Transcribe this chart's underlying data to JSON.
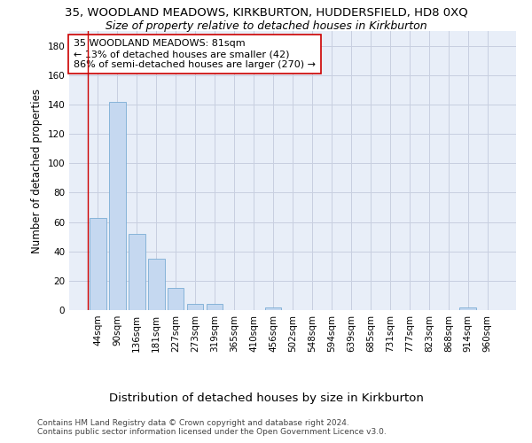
{
  "title": "35, WOODLAND MEADOWS, KIRKBURTON, HUDDERSFIELD, HD8 0XQ",
  "subtitle": "Size of property relative to detached houses in Kirkburton",
  "xlabel": "Distribution of detached houses by size in Kirkburton",
  "ylabel": "Number of detached properties",
  "bar_color": "#c5d8f0",
  "bar_edge_color": "#7aadd4",
  "grid_color": "#c8cfe0",
  "bg_color": "#e8eef8",
  "annotation_line1": "35 WOODLAND MEADOWS: 81sqm",
  "annotation_line2": "← 13% of detached houses are smaller (42)",
  "annotation_line3": "86% of semi-detached houses are larger (270) →",
  "annotation_line_color": "#cc0000",
  "annotation_box_edge_color": "#cc0000",
  "categories": [
    "44sqm",
    "90sqm",
    "136sqm",
    "181sqm",
    "227sqm",
    "273sqm",
    "319sqm",
    "365sqm",
    "410sqm",
    "456sqm",
    "502sqm",
    "548sqm",
    "594sqm",
    "639sqm",
    "685sqm",
    "731sqm",
    "777sqm",
    "823sqm",
    "868sqm",
    "914sqm",
    "960sqm"
  ],
  "bar_heights": [
    63,
    142,
    52,
    35,
    15,
    4,
    4,
    0,
    0,
    2,
    0,
    0,
    0,
    0,
    0,
    0,
    0,
    0,
    0,
    2,
    0
  ],
  "ylim": [
    0,
    190
  ],
  "yticks": [
    0,
    20,
    40,
    60,
    80,
    100,
    120,
    140,
    160,
    180
  ],
  "footer_line1": "Contains HM Land Registry data © Crown copyright and database right 2024.",
  "footer_line2": "Contains public sector information licensed under the Open Government Licence v3.0.",
  "title_fontsize": 9.5,
  "subtitle_fontsize": 9,
  "xlabel_fontsize": 9.5,
  "ylabel_fontsize": 8.5,
  "tick_fontsize": 7.5,
  "footer_fontsize": 6.5,
  "annotation_fontsize": 8
}
